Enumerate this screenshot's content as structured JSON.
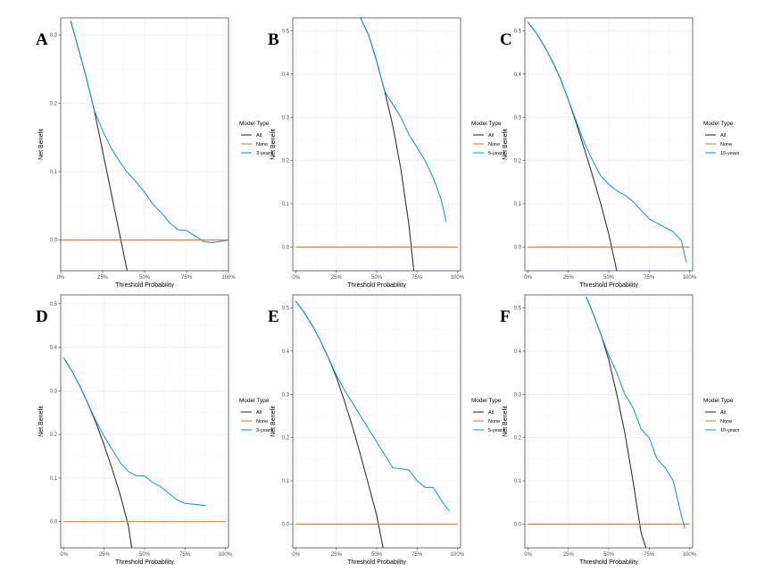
{
  "figure": {
    "legend_title": "Model Type",
    "xlabel": "Threshold Probability",
    "ylabel": "Net Benefit",
    "colors": {
      "All": "#333333",
      "None": "#e8793a",
      "model": "#1f9bd1"
    }
  },
  "chart_data": [
    {
      "panel": "A",
      "type": "line",
      "xlabel": "Threshold Probability",
      "ylabel": "Net Benefit",
      "xlim": [
        0,
        1
      ],
      "ylim": [
        -0.045,
        0.325
      ],
      "xticks": [
        0,
        0.25,
        0.5,
        0.75,
        1
      ],
      "xtick_labels": [
        "0%",
        "25%",
        "50%",
        "75%",
        "100%"
      ],
      "yticks": [
        0,
        0.1,
        0.2,
        0.3
      ],
      "ytick_labels": [
        "0.0",
        "0.1",
        "0.2",
        "0.3"
      ],
      "legend_title": "Model Type",
      "series": [
        {
          "name": "All",
          "color": "#333333",
          "x": [
            0.06,
            0.1,
            0.15,
            0.2,
            0.25,
            0.3,
            0.35,
            0.4
          ],
          "y": [
            0.32,
            0.285,
            0.24,
            0.19,
            0.13,
            0.07,
            0.01,
            -0.05
          ]
        },
        {
          "name": "None",
          "color": "#e8793a",
          "x": [
            0,
            1
          ],
          "y": [
            0,
            0
          ]
        },
        {
          "name": "3-years",
          "color": "#1f9bd1",
          "x": [
            0.06,
            0.1,
            0.15,
            0.2,
            0.25,
            0.3,
            0.35,
            0.4,
            0.45,
            0.5,
            0.55,
            0.6,
            0.65,
            0.7,
            0.75,
            0.8,
            0.85,
            0.9,
            0.95,
            1.0
          ],
          "y": [
            0.32,
            0.285,
            0.24,
            0.19,
            0.16,
            0.135,
            0.115,
            0.098,
            0.085,
            0.07,
            0.052,
            0.04,
            0.025,
            0.015,
            0.014,
            0.006,
            -0.002,
            -0.004,
            -0.002,
            0.0
          ]
        }
      ]
    },
    {
      "panel": "B",
      "type": "line",
      "xlabel": "Threshold Probability",
      "ylabel": "Net Benefit",
      "xlim": [
        -0.02,
        1.02
      ],
      "ylim": [
        -0.055,
        0.53
      ],
      "xticks": [
        0,
        0.25,
        0.5,
        0.75,
        1
      ],
      "xtick_labels": [
        "0%",
        "25%",
        "50%",
        "75%",
        "100%"
      ],
      "yticks": [
        0,
        0.1,
        0.2,
        0.3,
        0.4,
        0.5
      ],
      "ytick_labels": [
        "0.0",
        "0.1",
        "0.2",
        "0.3",
        "0.4",
        "0.5"
      ],
      "legend_title": "Model Type",
      "series": [
        {
          "name": "All",
          "color": "#333333",
          "x": [
            0.4,
            0.45,
            0.5,
            0.55,
            0.6,
            0.65,
            0.7,
            0.73
          ],
          "y": [
            0.53,
            0.49,
            0.43,
            0.36,
            0.28,
            0.18,
            0.05,
            -0.055
          ]
        },
        {
          "name": "None",
          "color": "#e8793a",
          "x": [
            0,
            1
          ],
          "y": [
            0,
            0
          ]
        },
        {
          "name": "5-years",
          "color": "#1f9bd1",
          "x": [
            0.4,
            0.45,
            0.5,
            0.55,
            0.6,
            0.65,
            0.7,
            0.75,
            0.8,
            0.85,
            0.9,
            0.93
          ],
          "y": [
            0.53,
            0.49,
            0.43,
            0.36,
            0.33,
            0.3,
            0.26,
            0.23,
            0.2,
            0.16,
            0.11,
            0.06
          ]
        }
      ]
    },
    {
      "panel": "C",
      "type": "line",
      "xlabel": "Threshold Probability",
      "ylabel": "Net Benefit",
      "xlim": [
        -0.02,
        1.02
      ],
      "ylim": [
        -0.055,
        0.53
      ],
      "xticks": [
        0,
        0.25,
        0.5,
        0.75,
        1
      ],
      "xtick_labels": [
        "0%",
        "25%",
        "50%",
        "75%",
        "100%"
      ],
      "yticks": [
        0,
        0.1,
        0.2,
        0.3,
        0.4,
        0.5
      ],
      "ytick_labels": [
        "0.0",
        "0.1",
        "0.2",
        "0.3",
        "0.4",
        "0.5"
      ],
      "legend_title": "Model Type",
      "series": [
        {
          "name": "All",
          "color": "#333333",
          "x": [
            0,
            0.05,
            0.1,
            0.15,
            0.2,
            0.25,
            0.3,
            0.35,
            0.4,
            0.45,
            0.5,
            0.55
          ],
          "y": [
            0.52,
            0.495,
            0.465,
            0.43,
            0.39,
            0.34,
            0.285,
            0.225,
            0.165,
            0.1,
            0.03,
            -0.055
          ]
        },
        {
          "name": "None",
          "color": "#e8793a",
          "x": [
            0,
            1
          ],
          "y": [
            0,
            0
          ]
        },
        {
          "name": "10-years",
          "color": "#1f9bd1",
          "x": [
            0,
            0.05,
            0.1,
            0.15,
            0.2,
            0.25,
            0.3,
            0.35,
            0.4,
            0.45,
            0.5,
            0.55,
            0.6,
            0.65,
            0.7,
            0.75,
            0.8,
            0.85,
            0.9,
            0.95,
            0.98
          ],
          "y": [
            0.52,
            0.495,
            0.465,
            0.43,
            0.39,
            0.34,
            0.29,
            0.24,
            0.2,
            0.165,
            0.145,
            0.13,
            0.12,
            0.105,
            0.085,
            0.065,
            0.055,
            0.045,
            0.035,
            0.015,
            -0.035
          ]
        }
      ]
    },
    {
      "panel": "D",
      "type": "line",
      "xlabel": "Threshold Probability",
      "ylabel": "Net Benefit",
      "xlim": [
        -0.02,
        1.02
      ],
      "ylim": [
        -0.06,
        0.52
      ],
      "xticks": [
        0,
        0.25,
        0.5,
        0.75,
        1
      ],
      "xtick_labels": [
        "0%",
        "25%",
        "50%",
        "75%",
        "100%"
      ],
      "yticks": [
        0,
        0.1,
        0.2,
        0.3,
        0.4,
        0.5
      ],
      "ytick_labels": [
        "0.0",
        "0.1",
        "0.2",
        "0.3",
        "0.4",
        "0.5"
      ],
      "legend_title": "Model Type",
      "series": [
        {
          "name": "All",
          "color": "#333333",
          "x": [
            0,
            0.05,
            0.1,
            0.15,
            0.2,
            0.25,
            0.3,
            0.35,
            0.4,
            0.42
          ],
          "y": [
            0.375,
            0.345,
            0.31,
            0.27,
            0.225,
            0.175,
            0.12,
            0.06,
            -0.01,
            -0.06
          ]
        },
        {
          "name": "None",
          "color": "#e8793a",
          "x": [
            0,
            1
          ],
          "y": [
            0,
            0
          ]
        },
        {
          "name": "3-years",
          "color": "#1f9bd1",
          "x": [
            0,
            0.05,
            0.1,
            0.15,
            0.2,
            0.25,
            0.3,
            0.35,
            0.4,
            0.45,
            0.5,
            0.55,
            0.6,
            0.65,
            0.7,
            0.75,
            0.8,
            0.85,
            0.88
          ],
          "y": [
            0.375,
            0.345,
            0.31,
            0.27,
            0.23,
            0.195,
            0.165,
            0.135,
            0.115,
            0.105,
            0.105,
            0.09,
            0.08,
            0.065,
            0.05,
            0.042,
            0.04,
            0.038,
            0.037
          ]
        }
      ]
    },
    {
      "panel": "E",
      "type": "line",
      "xlabel": "Threshold Probability",
      "ylabel": "Net Benefit",
      "xlim": [
        -0.02,
        1.02
      ],
      "ylim": [
        -0.055,
        0.53
      ],
      "xticks": [
        0,
        0.25,
        0.5,
        0.75,
        1
      ],
      "xtick_labels": [
        "0%",
        "25%",
        "50%",
        "75%",
        "100%"
      ],
      "yticks": [
        0,
        0.1,
        0.2,
        0.3,
        0.4,
        0.5
      ],
      "ytick_labels": [
        "0.0",
        "0.1",
        "0.2",
        "0.3",
        "0.4",
        "0.5"
      ],
      "legend_title": "Model Type",
      "series": [
        {
          "name": "All",
          "color": "#333333",
          "x": [
            0,
            0.05,
            0.1,
            0.15,
            0.2,
            0.25,
            0.3,
            0.35,
            0.4,
            0.45,
            0.5,
            0.54
          ],
          "y": [
            0.515,
            0.49,
            0.46,
            0.425,
            0.385,
            0.34,
            0.285,
            0.225,
            0.16,
            0.09,
            0.02,
            -0.055
          ]
        },
        {
          "name": "None",
          "color": "#e8793a",
          "x": [
            0,
            1
          ],
          "y": [
            0,
            0
          ]
        },
        {
          "name": "5-years",
          "color": "#1f9bd1",
          "x": [
            0,
            0.05,
            0.1,
            0.15,
            0.2,
            0.25,
            0.3,
            0.35,
            0.4,
            0.45,
            0.5,
            0.55,
            0.6,
            0.65,
            0.7,
            0.75,
            0.8,
            0.85,
            0.9,
            0.95
          ],
          "y": [
            0.515,
            0.49,
            0.46,
            0.425,
            0.385,
            0.345,
            0.31,
            0.28,
            0.25,
            0.22,
            0.19,
            0.16,
            0.13,
            0.128,
            0.125,
            0.1,
            0.085,
            0.085,
            0.055,
            0.03
          ]
        }
      ]
    },
    {
      "panel": "F",
      "type": "line",
      "xlabel": "Threshold Probability",
      "ylabel": "Net Benefit",
      "xlim": [
        -0.02,
        1.02
      ],
      "ylim": [
        -0.055,
        0.53
      ],
      "xticks": [
        0,
        0.25,
        0.5,
        0.75,
        1
      ],
      "xtick_labels": [
        "0%",
        "25%",
        "50%",
        "75%",
        "100%"
      ],
      "yticks": [
        0,
        0.1,
        0.2,
        0.3,
        0.4,
        0.5
      ],
      "ytick_labels": [
        "0.0",
        "0.1",
        "0.2",
        "0.3",
        "0.4",
        "0.5"
      ],
      "legend_title": "Model Type",
      "series": [
        {
          "name": "All",
          "color": "#333333",
          "x": [
            0.36,
            0.4,
            0.45,
            0.5,
            0.55,
            0.6,
            0.65,
            0.7,
            0.73
          ],
          "y": [
            0.525,
            0.49,
            0.44,
            0.38,
            0.3,
            0.21,
            0.1,
            -0.02,
            -0.055
          ]
        },
        {
          "name": "None",
          "color": "#e8793a",
          "x": [
            0,
            1
          ],
          "y": [
            0,
            0
          ]
        },
        {
          "name": "10-years",
          "color": "#1f9bd1",
          "x": [
            0.36,
            0.4,
            0.45,
            0.5,
            0.55,
            0.6,
            0.65,
            0.7,
            0.75,
            0.8,
            0.85,
            0.9,
            0.95,
            0.97
          ],
          "y": [
            0.525,
            0.49,
            0.44,
            0.39,
            0.35,
            0.3,
            0.27,
            0.22,
            0.2,
            0.15,
            0.13,
            0.1,
            0.02,
            -0.01
          ]
        }
      ]
    }
  ]
}
